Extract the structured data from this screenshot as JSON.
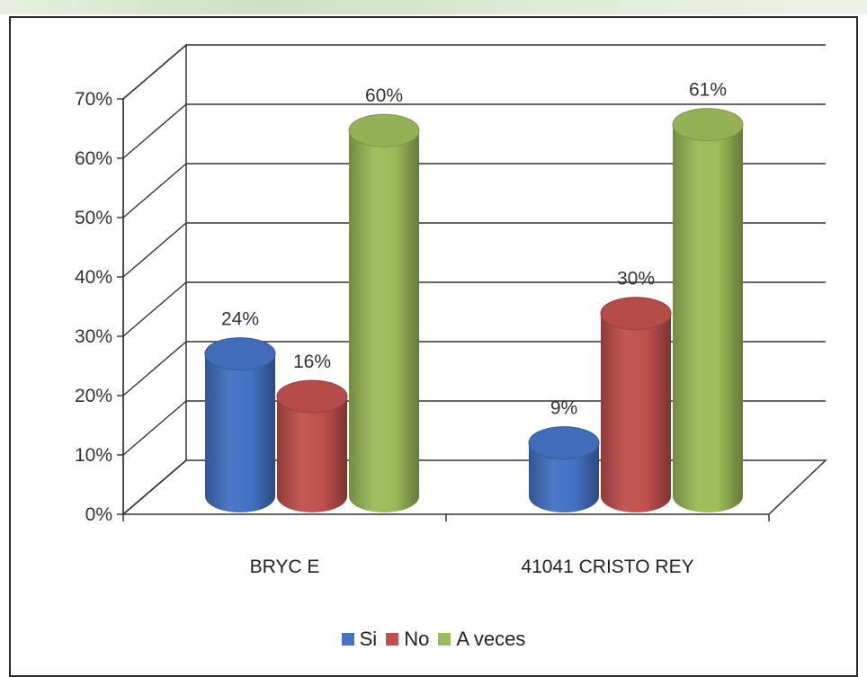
{
  "chart_data": {
    "type": "bar",
    "categories": [
      "BRYC E",
      "41041 CRISTO REY"
    ],
    "series": [
      {
        "name": "Si",
        "values": [
          24,
          9
        ],
        "color": "#4472C4",
        "labels": [
          "24%",
          "9%"
        ]
      },
      {
        "name": "No",
        "values": [
          16,
          30
        ],
        "color": "#C0504D",
        "labels": [
          "16%",
          "30%"
        ]
      },
      {
        "name": "A veces",
        "values": [
          60,
          61
        ],
        "color": "#9BBB59",
        "labels": [
          "60%",
          "61%"
        ]
      }
    ],
    "ylim": [
      0,
      70
    ],
    "yticks": [
      "0%",
      "10%",
      "20%",
      "30%",
      "40%",
      "50%",
      "60%",
      "70%"
    ],
    "grid": true,
    "legend_placement": "bottom",
    "style": "3d-cylinder"
  }
}
